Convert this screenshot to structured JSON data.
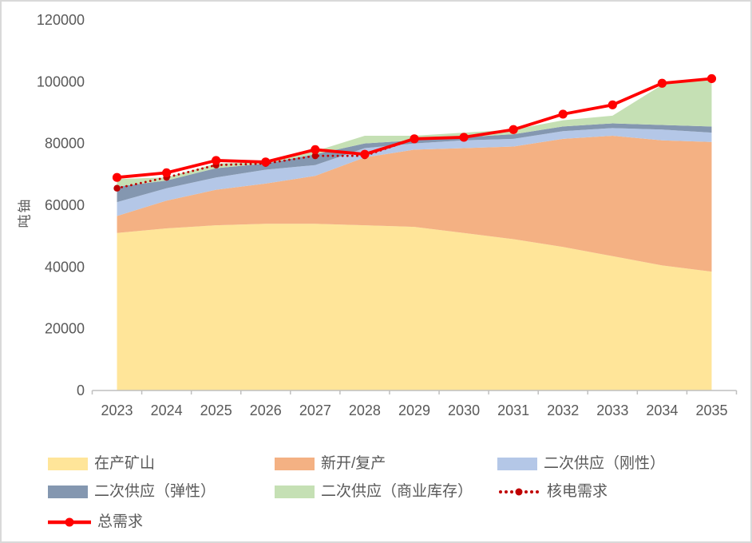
{
  "chart_data": {
    "type": "area",
    "subtype": "stacked-area-with-lines",
    "title": "",
    "xlabel": "",
    "ylabel": "吨铀",
    "ylim": [
      0,
      120000
    ],
    "yticks": [
      0,
      20000,
      40000,
      60000,
      80000,
      100000,
      120000
    ],
    "grid": false,
    "legend_position": "bottom",
    "categories": [
      "2023",
      "2024",
      "2025",
      "2026",
      "2027",
      "2028",
      "2029",
      "2030",
      "2031",
      "2032",
      "2033",
      "2034",
      "2035"
    ],
    "series": [
      {
        "id": "producing-mines",
        "name": "在产矿山",
        "type": "area",
        "color": "#FFE599",
        "values": [
          51000,
          52500,
          53500,
          54000,
          54000,
          53500,
          53000,
          51000,
          49000,
          46500,
          43500,
          40500,
          38500
        ]
      },
      {
        "id": "new-or-restarted-mines",
        "name": "新开/复产",
        "type": "area",
        "color": "#F4B183",
        "values": [
          5500,
          9000,
          11500,
          13000,
          15500,
          22000,
          25000,
          27500,
          30000,
          35000,
          39000,
          40500,
          42000
        ]
      },
      {
        "id": "secondary-supply-rigid",
        "name": "二次供应（刚性）",
        "type": "area",
        "color": "#B4C7E7",
        "values": [
          4500,
          4000,
          4000,
          4500,
          3500,
          3000,
          2000,
          2500,
          2500,
          2500,
          2500,
          3500,
          3000
        ]
      },
      {
        "id": "secondary-supply-flexible",
        "name": "二次供应（弹性）",
        "type": "area",
        "color": "#8497B0",
        "values": [
          5000,
          2500,
          3000,
          2000,
          3500,
          1500,
          1000,
          1000,
          1500,
          1500,
          1500,
          1500,
          2000
        ]
      },
      {
        "id": "secondary-supply-commercial-inventory",
        "name": "二次供应（商业库存）",
        "type": "area",
        "color": "#C5E0B4",
        "values": [
          2500,
          1000,
          1500,
          500,
          1000,
          2500,
          1500,
          1500,
          1500,
          2000,
          2500,
          13000,
          15500
        ]
      },
      {
        "id": "nuclear-power-demand",
        "name": "核电需求",
        "type": "line-dotted",
        "color": "#C00000",
        "values": [
          65500,
          69000,
          73000,
          73500,
          76000,
          76000,
          81500,
          82000,
          84500,
          89500,
          92500,
          99500,
          101000
        ]
      },
      {
        "id": "total-demand",
        "name": "总需求",
        "type": "line",
        "color": "#FF0000",
        "values": [
          69000,
          70500,
          74500,
          74000,
          78000,
          76500,
          81500,
          82000,
          84500,
          89500,
          92500,
          99500,
          101000
        ]
      }
    ],
    "colors": {
      "axis": "#BFBFBF",
      "tick_text": "#595959",
      "frame_border": "#D9D9D9"
    }
  }
}
